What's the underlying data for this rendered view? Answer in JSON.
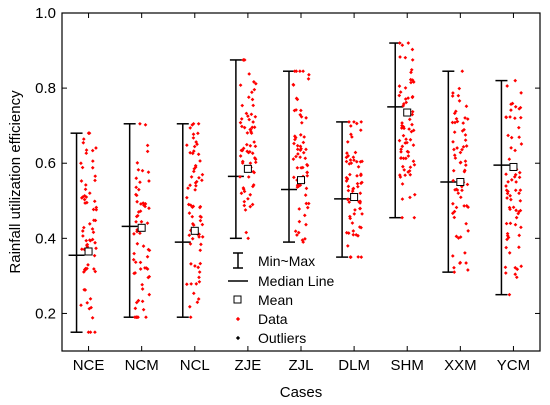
{
  "chart_data": {
    "type": "box-scatter",
    "xlabel": "Cases",
    "ylabel": "Rainfall utilization efficiency",
    "ylim": [
      0.1,
      1.0
    ],
    "yticks": [
      "0.2",
      "0.4",
      "0.6",
      "0.8",
      "1.0"
    ],
    "yticks_values": [
      0.2,
      0.4,
      0.6,
      0.8,
      1.0
    ],
    "grid": false,
    "legend_position": "center-bottom",
    "categories": [
      "NCE",
      "NCM",
      "NCL",
      "ZJE",
      "ZJL",
      "DLM",
      "SHM",
      "XXM",
      "YCM"
    ],
    "stats": [
      {
        "min": 0.15,
        "max": 0.68,
        "median": 0.355,
        "mean": 0.365
      },
      {
        "min": 0.19,
        "max": 0.705,
        "median": 0.432,
        "mean": 0.428
      },
      {
        "min": 0.19,
        "max": 0.705,
        "median": 0.39,
        "mean": 0.42
      },
      {
        "min": 0.4,
        "max": 0.875,
        "median": 0.565,
        "mean": 0.585
      },
      {
        "min": 0.39,
        "max": 0.845,
        "median": 0.53,
        "mean": 0.555
      },
      {
        "min": 0.35,
        "max": 0.71,
        "median": 0.505,
        "mean": 0.51
      },
      {
        "min": 0.455,
        "max": 0.92,
        "median": 0.75,
        "mean": 0.735
      },
      {
        "min": 0.31,
        "max": 0.845,
        "median": 0.55,
        "mean": 0.55
      },
      {
        "min": 0.25,
        "max": 0.82,
        "median": 0.595,
        "mean": 0.59
      }
    ],
    "legend": [
      "Min~Max",
      "Median Line",
      "Mean",
      "Data",
      "Outliers"
    ],
    "colors": {
      "data": "#ff0000",
      "box": "#000000",
      "outlier": "#000000"
    }
  }
}
